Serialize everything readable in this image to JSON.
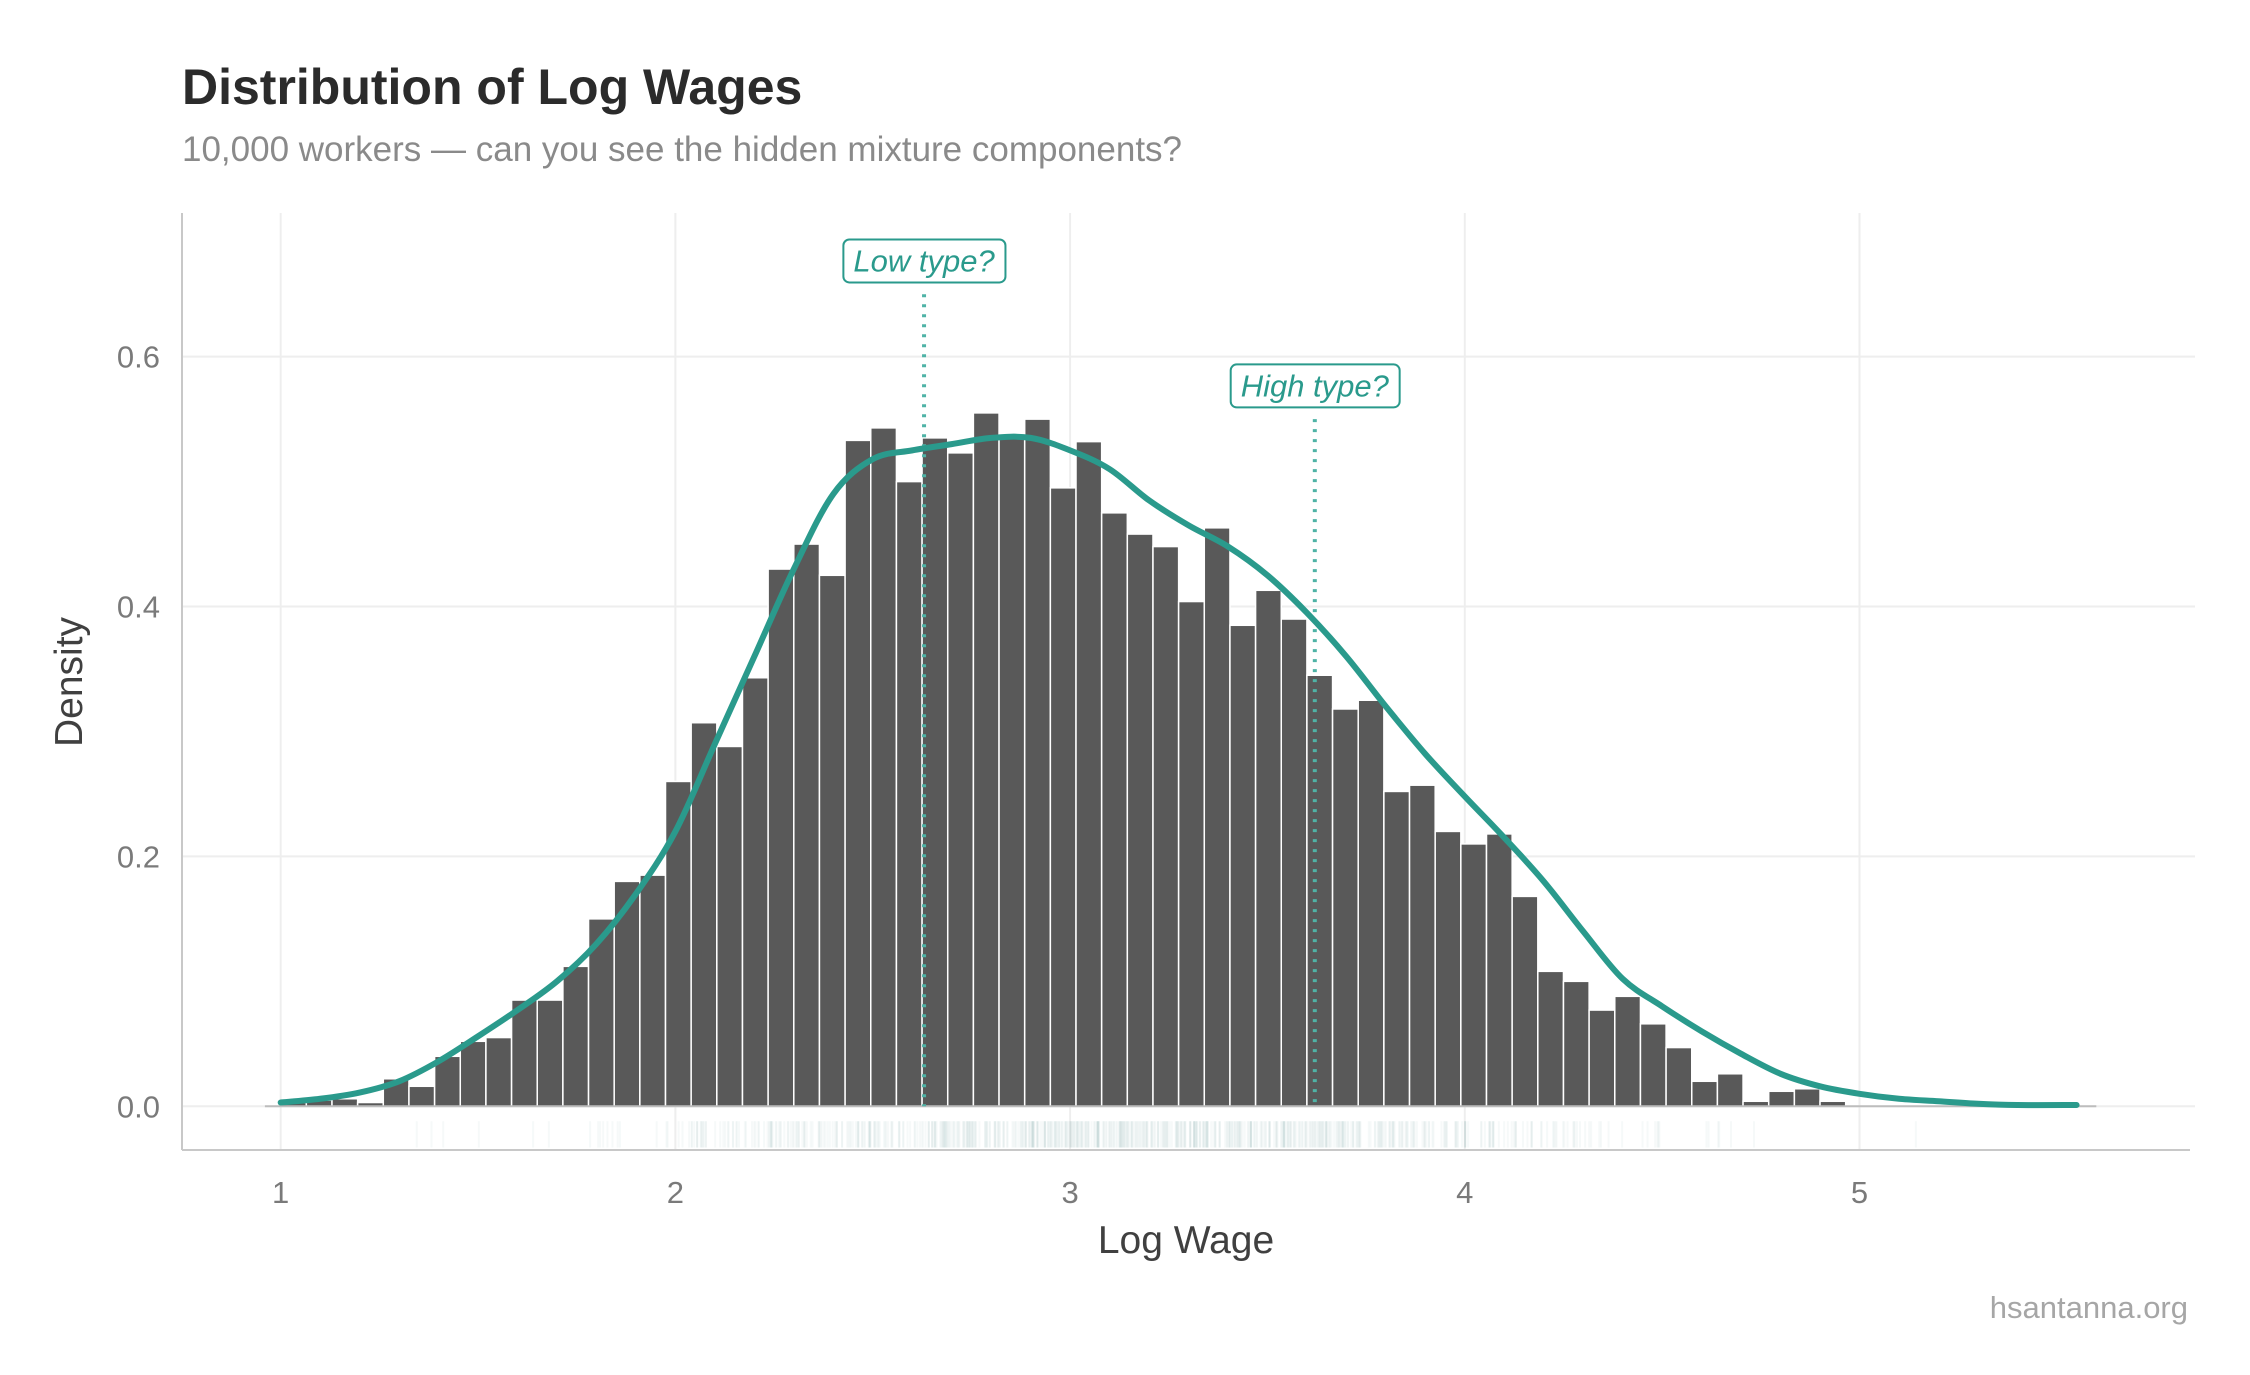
{
  "chart_data": {
    "type": "bar",
    "title": "Distribution of Log Wages",
    "subtitle": "10,000 workers — can you see the hidden mixture components?",
    "xlabel": "Log Wage",
    "ylabel": "Density",
    "caption": "hsantanna.org",
    "xlim": [
      0.75,
      5.85
    ],
    "ylim": [
      -0.035,
      0.715
    ],
    "x_ticks": [
      1,
      2,
      3,
      4,
      5
    ],
    "y_ticks": [
      0.0,
      0.2,
      0.4,
      0.6
    ],
    "y_tick_labels": [
      "0.0",
      "0.2",
      "0.4",
      "0.6"
    ],
    "grid": true,
    "bar_color": "#595959",
    "density_color": "#2a9a8c",
    "rug_color": "#5f9c98",
    "bin_width": 0.065,
    "bin_start": 1.0,
    "values": [
      0.003,
      0.005,
      0.006,
      0.003,
      0.022,
      0.016,
      0.04,
      0.052,
      0.055,
      0.085,
      0.085,
      0.112,
      0.15,
      0.18,
      0.185,
      0.26,
      0.307,
      0.288,
      0.343,
      0.43,
      0.45,
      0.425,
      0.533,
      0.543,
      0.5,
      0.535,
      0.523,
      0.555,
      0.535,
      0.55,
      0.495,
      0.532,
      0.475,
      0.458,
      0.448,
      0.404,
      0.463,
      0.385,
      0.413,
      0.39,
      0.345,
      0.318,
      0.325,
      0.252,
      0.257,
      0.22,
      0.21,
      0.218,
      0.168,
      0.108,
      0.1,
      0.077,
      0.088,
      0.066,
      0.047,
      0.02,
      0.026,
      0.004,
      0.012,
      0.014,
      0.004
    ],
    "density_curve": {
      "x": [
        1.0,
        1.1,
        1.2,
        1.3,
        1.4,
        1.5,
        1.6,
        1.7,
        1.8,
        1.9,
        2.0,
        2.1,
        2.2,
        2.3,
        2.4,
        2.5,
        2.6,
        2.7,
        2.8,
        2.9,
        3.0,
        3.1,
        3.2,
        3.3,
        3.4,
        3.5,
        3.6,
        3.7,
        3.8,
        3.9,
        4.0,
        4.1,
        4.2,
        4.3,
        4.4,
        4.5,
        4.6,
        4.7,
        4.8,
        4.9,
        5.0,
        5.1,
        5.2,
        5.3,
        5.4,
        5.55
      ],
      "y": [
        0.003,
        0.006,
        0.011,
        0.02,
        0.036,
        0.056,
        0.077,
        0.1,
        0.13,
        0.17,
        0.22,
        0.29,
        0.36,
        0.43,
        0.49,
        0.518,
        0.525,
        0.53,
        0.535,
        0.535,
        0.525,
        0.51,
        0.485,
        0.465,
        0.448,
        0.425,
        0.395,
        0.36,
        0.32,
        0.282,
        0.248,
        0.215,
        0.18,
        0.14,
        0.102,
        0.08,
        0.06,
        0.042,
        0.026,
        0.016,
        0.01,
        0.006,
        0.004,
        0.002,
        0.001,
        0.001
      ]
    },
    "annotations": [
      {
        "label": "Low type?",
        "x": 2.63,
        "line_top": 0.65,
        "label_y": 0.677
      },
      {
        "label": "High type?",
        "x": 3.62,
        "line_top": 0.55,
        "label_y": 0.577
      }
    ],
    "rug_range": [
      1.05,
      5.35
    ],
    "rug_center": 3.0
  }
}
